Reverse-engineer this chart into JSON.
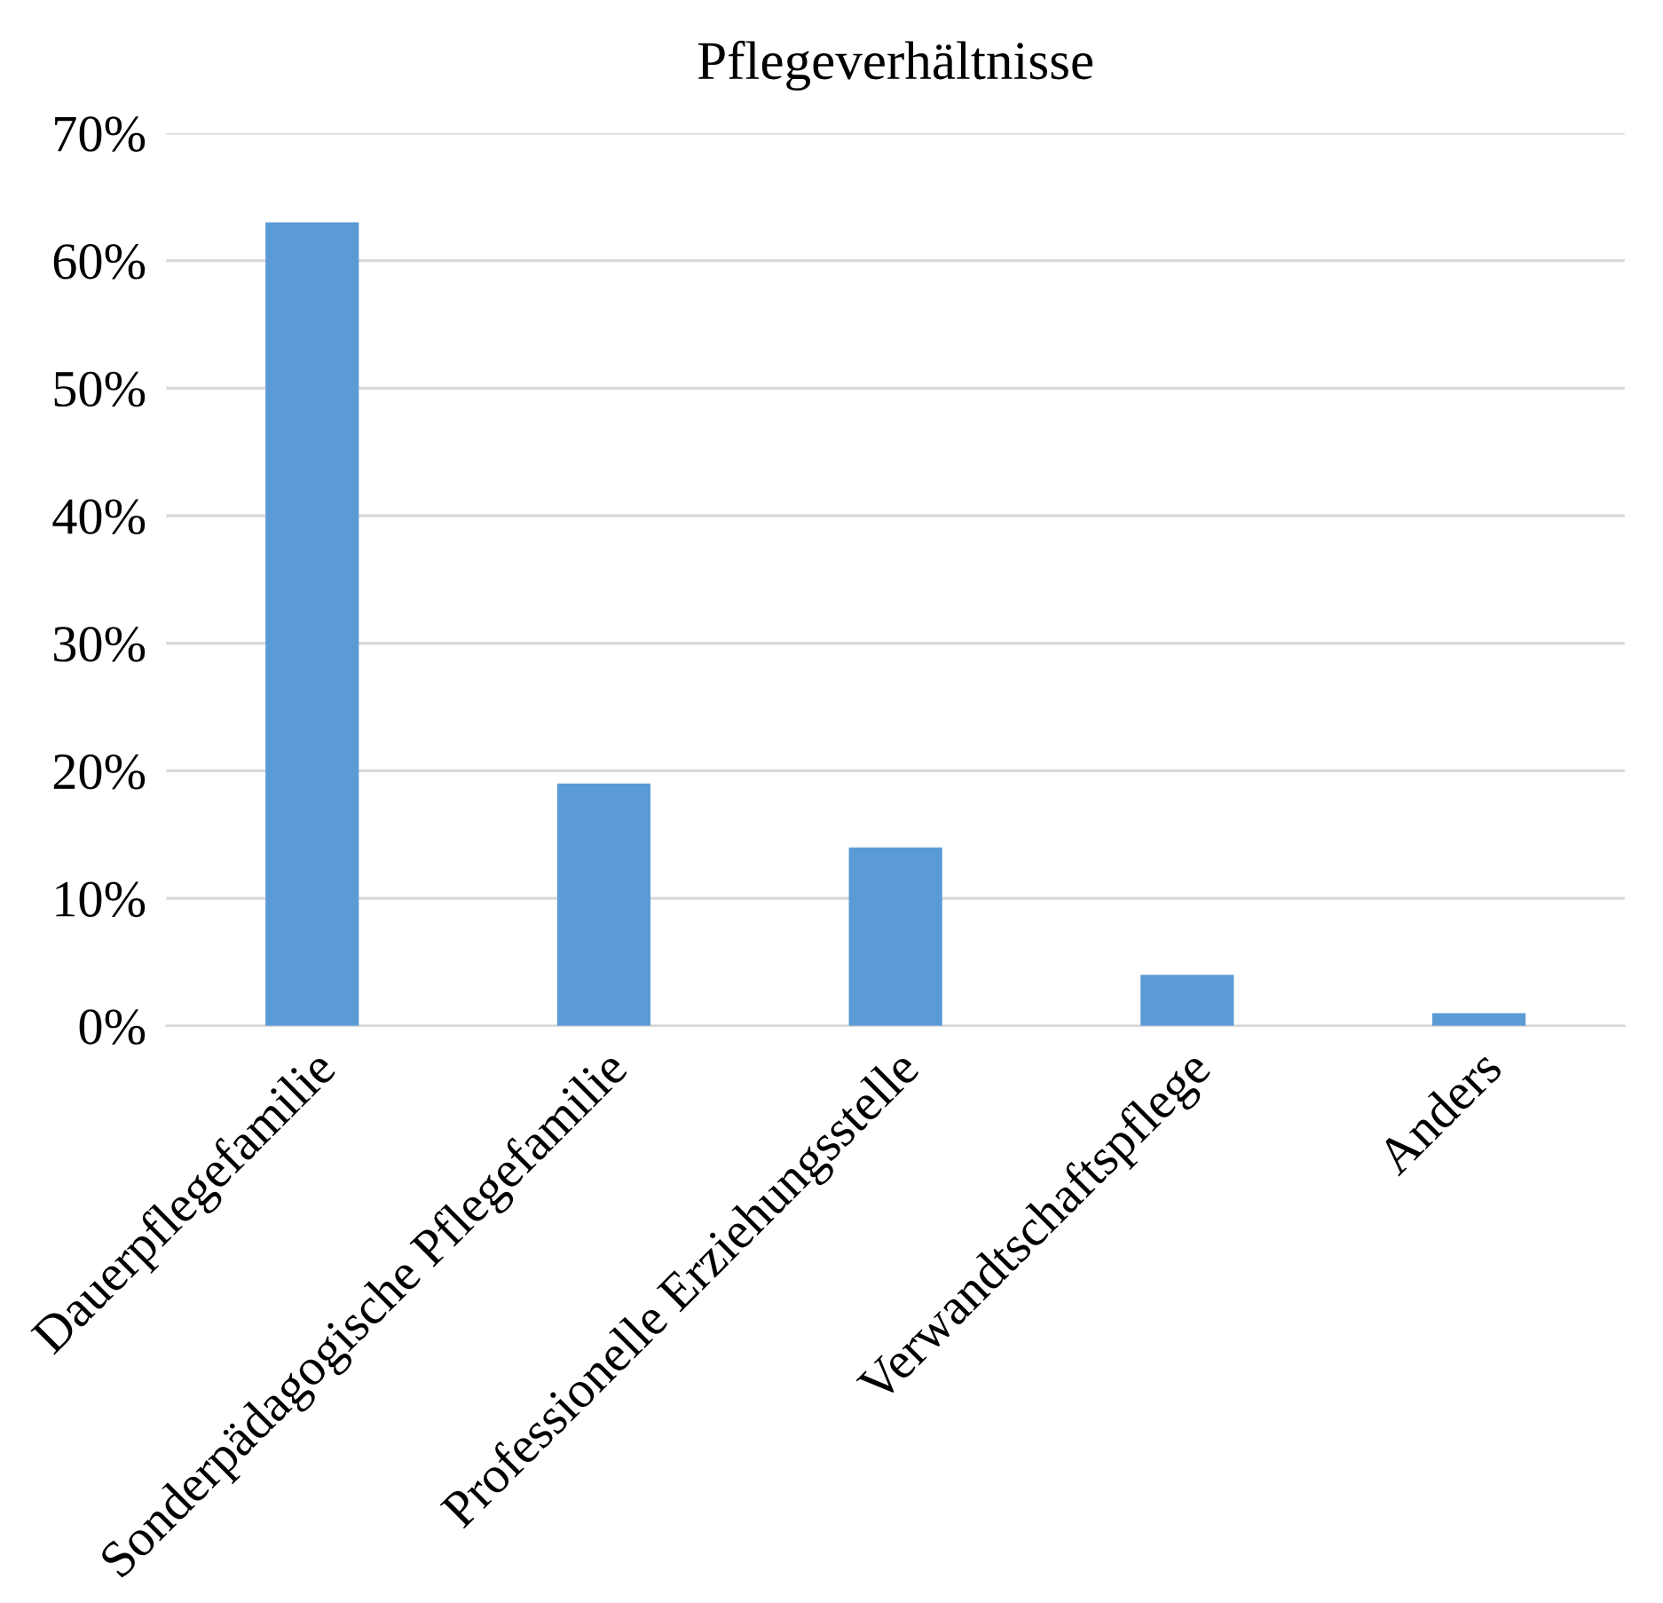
{
  "chart_data": {
    "type": "bar",
    "title": "Pflegeverhältnisse",
    "categories": [
      "Dauerpflegefamilie",
      "Sonderpädagogische Pflegefamilie",
      "Professionelle Erziehungsstelle",
      "Verwandtschaftspflege",
      "Anders"
    ],
    "values": [
      63,
      19,
      14,
      4,
      1
    ],
    "color": "#5b9bd5",
    "ylim": [
      0,
      70
    ],
    "yticks": [
      {
        "value": 0,
        "label": "0%"
      },
      {
        "value": 10,
        "label": "10%"
      },
      {
        "value": 20,
        "label": "20%"
      },
      {
        "value": 30,
        "label": "30%"
      },
      {
        "value": 40,
        "label": "40%"
      },
      {
        "value": 50,
        "label": "50%"
      },
      {
        "value": 60,
        "label": "60%"
      },
      {
        "value": 70,
        "label": "70%"
      }
    ],
    "grid": "y",
    "legend": false
  }
}
